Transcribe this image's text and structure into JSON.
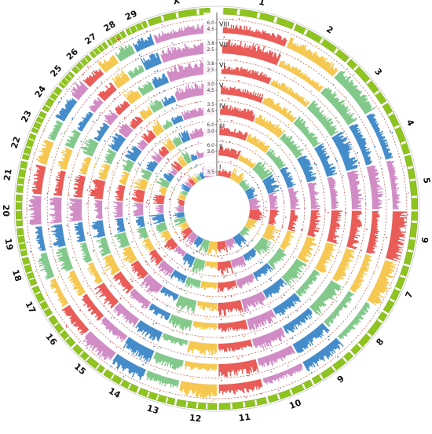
{
  "chart_data": {
    "type": "circular-manhattan",
    "title": "",
    "chromosomes": [
      "1",
      "2",
      "3",
      "4",
      "5",
      "6",
      "7",
      "8",
      "9",
      "10",
      "11",
      "12",
      "13",
      "14",
      "15",
      "16",
      "17",
      "18",
      "19",
      "20",
      "21",
      "22",
      "23",
      "24",
      "25",
      "26",
      "27",
      "28",
      "29",
      "X"
    ],
    "chromosome_weights": [
      1.58,
      1.37,
      1.21,
      1.2,
      1.21,
      1.19,
      1.11,
      1.13,
      1.05,
      1.04,
      1.07,
      0.91,
      0.84,
      0.84,
      0.85,
      0.81,
      0.73,
      0.66,
      0.64,
      0.72,
      0.72,
      0.61,
      0.52,
      0.62,
      0.42,
      0.51,
      0.45,
      0.46,
      0.51,
      1.39
    ],
    "palette": [
      "#e8534f",
      "#f6c548",
      "#7cc686",
      "#3b86c8",
      "#cf86c2"
    ],
    "rings": [
      {
        "label": "I",
        "ticks": [
          "3.5"
        ]
      },
      {
        "label": "II",
        "ticks": [
          "3.0",
          "6.0"
        ]
      },
      {
        "label": "III",
        "ticks": [
          "3.0",
          "6.0"
        ]
      },
      {
        "label": "IV",
        "ticks": [
          "4.5",
          "3.5"
        ]
      },
      {
        "label": "V",
        "ticks": [
          "4.5",
          "3.0"
        ]
      },
      {
        "label": "VI",
        "ticks": [
          "2.5",
          "3.8"
        ]
      },
      {
        "label": "VII",
        "ticks": [
          "2.5",
          "3.8"
        ]
      },
      {
        "label": "VIII",
        "ticks": [
          "4.5",
          "6.0"
        ]
      }
    ],
    "ideogram_colors": [
      "#8fc31f",
      "#ffffff"
    ],
    "threshold_color": "#c0392b",
    "highlight_marker": {
      "chromosome": "28",
      "ring": "VIII",
      "color": "#e74c3c",
      "symbol": "*"
    }
  }
}
